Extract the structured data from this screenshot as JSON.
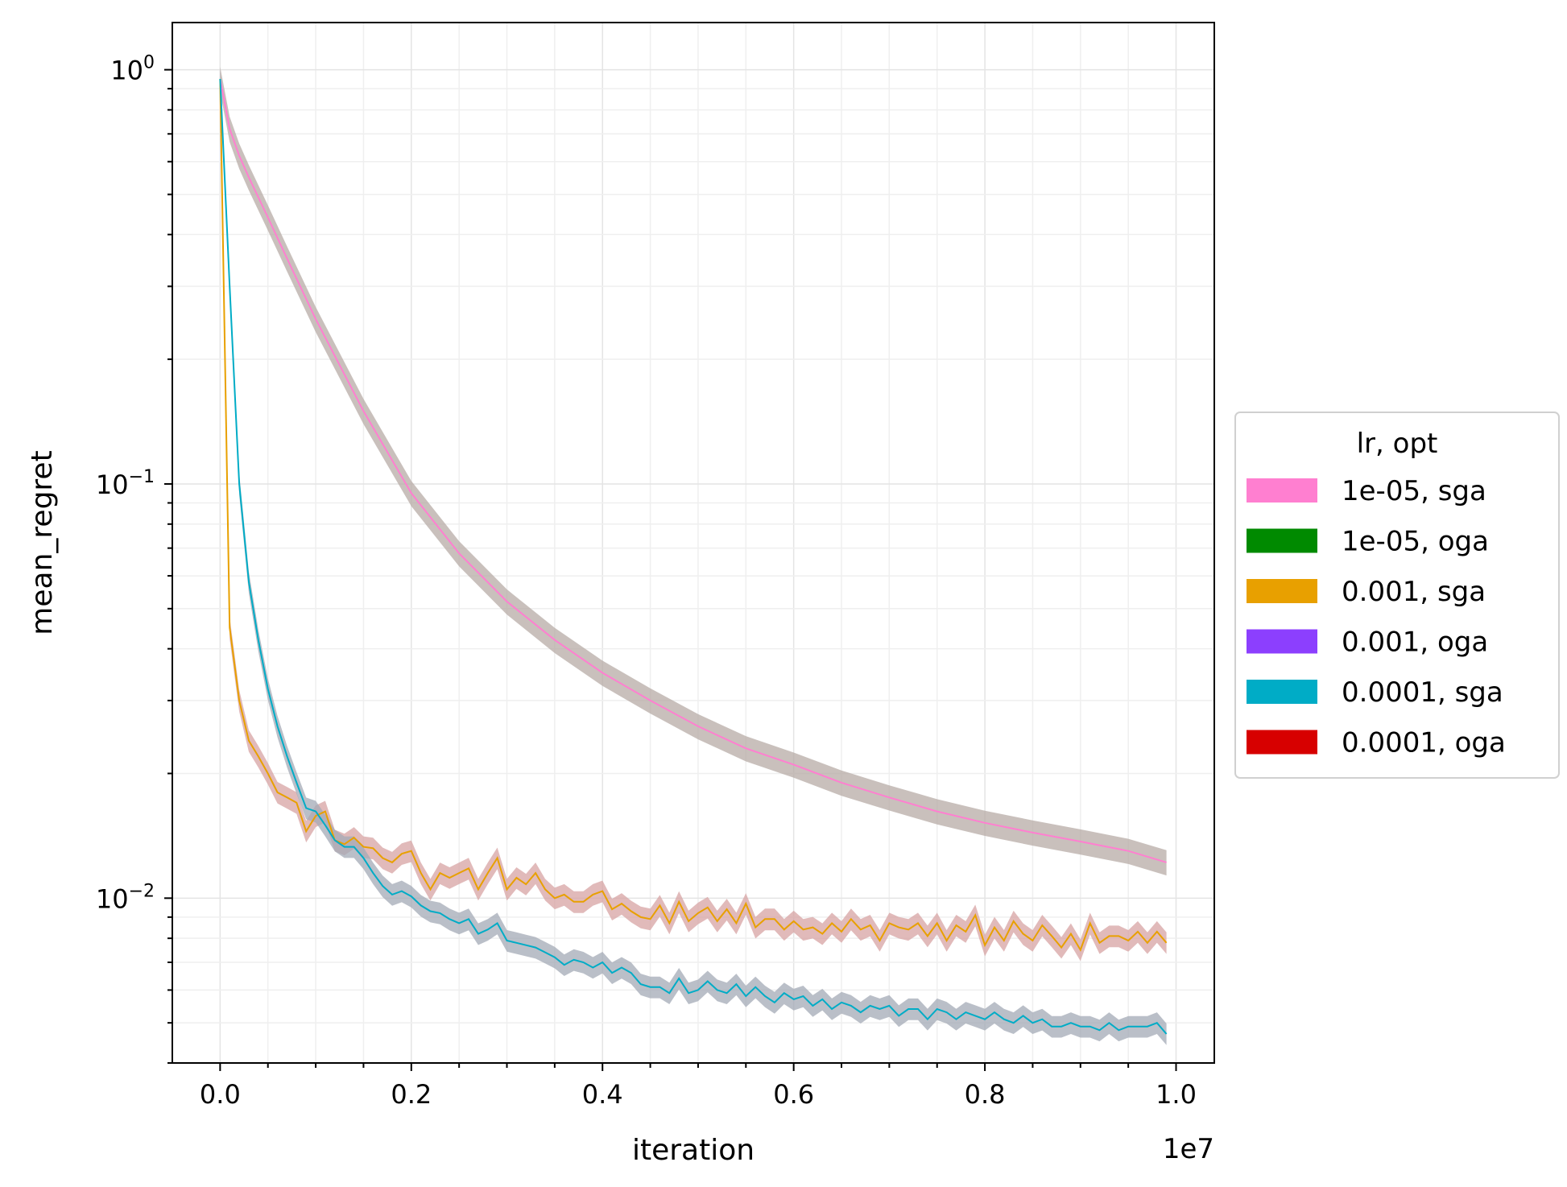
{
  "chart_data": {
    "type": "line",
    "title": "",
    "xlabel": "iteration",
    "ylabel": "mean_regret",
    "x_offset_label": "1e7",
    "xlim": [
      -0.05,
      1.04
    ],
    "ylim": [
      0.004,
      1.3
    ],
    "x_scale": "linear",
    "y_scale": "log",
    "x_ticks": [
      0.0,
      0.2,
      0.4,
      0.6,
      0.8,
      1.0
    ],
    "x_tick_labels": [
      "0.0",
      "0.2",
      "0.4",
      "0.6",
      "0.8",
      "1.0"
    ],
    "y_ticks": [
      {
        "value": 1,
        "base": "10",
        "exp": "0"
      },
      {
        "value": 0.1,
        "base": "10",
        "exp": "−1"
      },
      {
        "value": 0.01,
        "base": "10",
        "exp": "−2"
      }
    ],
    "grid": true,
    "legend": {
      "title": "lr, opt",
      "placement": "outside-right",
      "entries": [
        {
          "label": "1e-05, sga",
          "color": "#ff7fd0"
        },
        {
          "label": "1e-05, oga",
          "color": "#008a00"
        },
        {
          "label": "0.001, sga",
          "color": "#e8a000"
        },
        {
          "label": "0.001, oga",
          "color": "#8c3ffe"
        },
        {
          "label": "0.0001, sga",
          "color": "#00acc6"
        },
        {
          "label": "0.0001, oga",
          "color": "#d70000"
        }
      ]
    },
    "series": [
      {
        "name": "1e-05, sga",
        "color": "#ff7fd0",
        "band_color": "#b7aba5",
        "x": [
          0.0,
          0.01,
          0.02,
          0.03,
          0.05,
          0.07,
          0.1,
          0.15,
          0.2,
          0.25,
          0.3,
          0.35,
          0.4,
          0.45,
          0.5,
          0.55,
          0.6,
          0.65,
          0.7,
          0.75,
          0.8,
          0.85,
          0.9,
          0.95,
          0.99
        ],
        "y": [
          0.95,
          0.72,
          0.62,
          0.55,
          0.44,
          0.35,
          0.25,
          0.15,
          0.095,
          0.068,
          0.052,
          0.042,
          0.035,
          0.03,
          0.026,
          0.023,
          0.021,
          0.019,
          0.0175,
          0.0162,
          0.0152,
          0.0144,
          0.0137,
          0.013,
          0.0122
        ],
        "band_rel": 0.07
      },
      {
        "name": "0.001, sga",
        "color": "#e8a000",
        "band_color": "#d7a3a3",
        "x": [
          0.0,
          0.01,
          0.02,
          0.03,
          0.04,
          0.05,
          0.06,
          0.07,
          0.08,
          0.09,
          0.1,
          0.11,
          0.12,
          0.13,
          0.14,
          0.15,
          0.16,
          0.17,
          0.18,
          0.19,
          0.2,
          0.21,
          0.22,
          0.23,
          0.24,
          0.25,
          0.26,
          0.27,
          0.28,
          0.29,
          0.3,
          0.31,
          0.32,
          0.33,
          0.34,
          0.35,
          0.36,
          0.37,
          0.38,
          0.39,
          0.4,
          0.41,
          0.42,
          0.43,
          0.44,
          0.45,
          0.46,
          0.47,
          0.48,
          0.49,
          0.5,
          0.51,
          0.52,
          0.53,
          0.54,
          0.55,
          0.56,
          0.57,
          0.58,
          0.59,
          0.6,
          0.61,
          0.62,
          0.63,
          0.64,
          0.65,
          0.66,
          0.67,
          0.68,
          0.69,
          0.7,
          0.71,
          0.72,
          0.73,
          0.74,
          0.75,
          0.76,
          0.77,
          0.78,
          0.79,
          0.8,
          0.81,
          0.82,
          0.83,
          0.84,
          0.85,
          0.86,
          0.87,
          0.88,
          0.89,
          0.9,
          0.91,
          0.92,
          0.93,
          0.94,
          0.95,
          0.96,
          0.97,
          0.98,
          0.99
        ],
        "y": [
          0.95,
          0.045,
          0.03,
          0.024,
          0.022,
          0.02,
          0.018,
          0.0175,
          0.017,
          0.0145,
          0.0158,
          0.0162,
          0.0138,
          0.0135,
          0.014,
          0.0133,
          0.0132,
          0.0125,
          0.0122,
          0.0128,
          0.013,
          0.0115,
          0.0105,
          0.0115,
          0.0112,
          0.0115,
          0.0118,
          0.0105,
          0.0115,
          0.0125,
          0.0105,
          0.0112,
          0.0108,
          0.0115,
          0.0105,
          0.01,
          0.0102,
          0.0098,
          0.0098,
          0.0102,
          0.0104,
          0.0094,
          0.0097,
          0.0093,
          0.009,
          0.0089,
          0.0096,
          0.0087,
          0.0098,
          0.0088,
          0.0092,
          0.0095,
          0.0088,
          0.0094,
          0.0087,
          0.0097,
          0.0085,
          0.0089,
          0.0089,
          0.0084,
          0.0088,
          0.0084,
          0.0085,
          0.0082,
          0.0087,
          0.0083,
          0.0089,
          0.0084,
          0.0086,
          0.0079,
          0.0087,
          0.0085,
          0.0084,
          0.0087,
          0.0081,
          0.0087,
          0.0079,
          0.0086,
          0.0083,
          0.0091,
          0.0077,
          0.0085,
          0.0079,
          0.0088,
          0.0082,
          0.0079,
          0.0086,
          0.0081,
          0.0076,
          0.0082,
          0.0075,
          0.0087,
          0.0078,
          0.0081,
          0.0081,
          0.0079,
          0.0083,
          0.0078,
          0.0083,
          0.0078
        ],
        "band_rel": 0.06
      },
      {
        "name": "0.0001, sga",
        "color": "#00acc6",
        "band_color": "#a3a9b5",
        "x": [
          0.0,
          0.01,
          0.02,
          0.03,
          0.04,
          0.05,
          0.06,
          0.07,
          0.08,
          0.09,
          0.1,
          0.11,
          0.12,
          0.13,
          0.14,
          0.15,
          0.16,
          0.17,
          0.18,
          0.19,
          0.2,
          0.21,
          0.22,
          0.23,
          0.24,
          0.25,
          0.26,
          0.27,
          0.28,
          0.29,
          0.3,
          0.31,
          0.32,
          0.33,
          0.34,
          0.35,
          0.36,
          0.37,
          0.38,
          0.39,
          0.4,
          0.41,
          0.42,
          0.43,
          0.44,
          0.45,
          0.46,
          0.47,
          0.48,
          0.49,
          0.5,
          0.51,
          0.52,
          0.53,
          0.54,
          0.55,
          0.56,
          0.57,
          0.58,
          0.59,
          0.6,
          0.61,
          0.62,
          0.63,
          0.64,
          0.65,
          0.66,
          0.67,
          0.68,
          0.69,
          0.7,
          0.71,
          0.72,
          0.73,
          0.74,
          0.75,
          0.76,
          0.77,
          0.78,
          0.79,
          0.8,
          0.81,
          0.82,
          0.83,
          0.84,
          0.85,
          0.86,
          0.87,
          0.88,
          0.89,
          0.9,
          0.91,
          0.92,
          0.93,
          0.94,
          0.95,
          0.96,
          0.97,
          0.98,
          0.99
        ],
        "y": [
          0.95,
          0.3,
          0.1,
          0.058,
          0.042,
          0.032,
          0.026,
          0.022,
          0.019,
          0.0165,
          0.0162,
          0.015,
          0.0138,
          0.0133,
          0.0133,
          0.0125,
          0.0115,
          0.0107,
          0.0102,
          0.0104,
          0.0101,
          0.0096,
          0.0093,
          0.0092,
          0.0089,
          0.0087,
          0.0089,
          0.0082,
          0.0084,
          0.0087,
          0.0079,
          0.0078,
          0.0077,
          0.0076,
          0.0074,
          0.0072,
          0.0069,
          0.0071,
          0.007,
          0.0068,
          0.007,
          0.0066,
          0.0068,
          0.0066,
          0.0062,
          0.0061,
          0.0061,
          0.0059,
          0.0064,
          0.0059,
          0.006,
          0.0063,
          0.006,
          0.0059,
          0.0062,
          0.0058,
          0.0061,
          0.0058,
          0.0056,
          0.0059,
          0.0057,
          0.0058,
          0.0055,
          0.0057,
          0.0054,
          0.0056,
          0.0055,
          0.0053,
          0.0055,
          0.0054,
          0.0055,
          0.0052,
          0.0054,
          0.0054,
          0.0051,
          0.0054,
          0.0053,
          0.0051,
          0.0053,
          0.0052,
          0.0051,
          0.0053,
          0.0051,
          0.005,
          0.0052,
          0.005,
          0.0051,
          0.0049,
          0.0049,
          0.005,
          0.0049,
          0.0049,
          0.0048,
          0.005,
          0.0048,
          0.0049,
          0.0049,
          0.0049,
          0.005,
          0.0047
        ],
        "band_rel": 0.06
      }
    ]
  }
}
